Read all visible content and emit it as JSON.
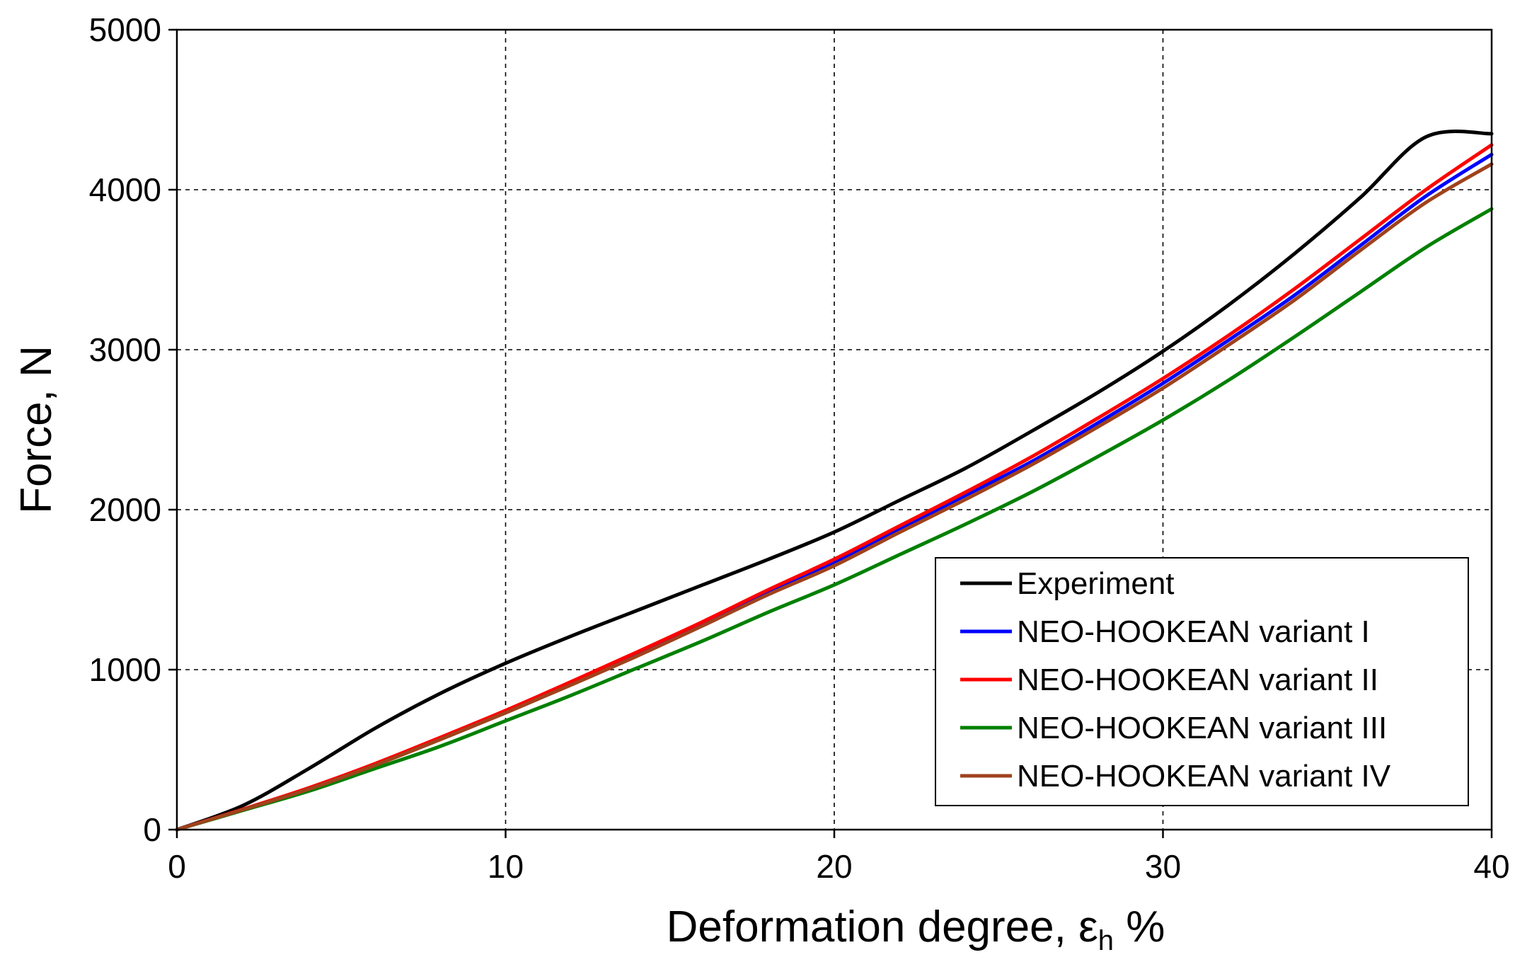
{
  "chart_data": {
    "type": "line",
    "title": "",
    "xlabel": "Deformation degree, ",
    "xlabel_symbol": "ε",
    "xlabel_subscript": "h",
    "xlabel_suffix": " %",
    "ylabel": "Force, N",
    "xlim": [
      0,
      40
    ],
    "ylim": [
      0,
      5000
    ],
    "x_ticks": [
      0,
      10,
      20,
      30,
      40
    ],
    "y_ticks": [
      0,
      1000,
      2000,
      3000,
      4000,
      5000
    ],
    "x_tick_labels": [
      "0",
      "10",
      "20",
      "30",
      "40"
    ],
    "y_tick_labels": [
      "0",
      "1000",
      "2000",
      "3000",
      "4000",
      "5000"
    ],
    "grid": true,
    "legend_position": "lower-right",
    "x": [
      0,
      2,
      4,
      6,
      8,
      10,
      12,
      14,
      16,
      18,
      20,
      22,
      24,
      26,
      28,
      30,
      32,
      34,
      36,
      38,
      40
    ],
    "series": [
      {
        "name": "Experiment",
        "color": "#000000",
        "values": [
          0,
          150,
          380,
          630,
          850,
          1040,
          1210,
          1370,
          1530,
          1690,
          1860,
          2060,
          2260,
          2490,
          2730,
          2990,
          3280,
          3600,
          3950,
          4330,
          4350
        ]
      },
      {
        "name": "NEO-HOOKEAN variant I",
        "color": "#0000ff",
        "values": [
          0,
          125,
          255,
          405,
          570,
          740,
          920,
          1100,
          1290,
          1490,
          1670,
          1880,
          2090,
          2300,
          2540,
          2790,
          3060,
          3340,
          3650,
          3960,
          4220
        ]
      },
      {
        "name": "NEO-HOOKEAN variant II",
        "color": "#ff0000",
        "values": [
          0,
          127,
          260,
          410,
          575,
          745,
          925,
          1110,
          1300,
          1500,
          1690,
          1900,
          2110,
          2330,
          2570,
          2820,
          3090,
          3380,
          3690,
          4000,
          4280
        ]
      },
      {
        "name": "NEO-HOOKEAN variant III",
        "color": "#008000",
        "values": [
          0,
          120,
          240,
          380,
          520,
          680,
          840,
          1010,
          1180,
          1360,
          1530,
          1720,
          1910,
          2110,
          2330,
          2560,
          2810,
          3080,
          3360,
          3640,
          3880
        ]
      },
      {
        "name": "NEO-HOOKEAN variant IV",
        "color": "#a0421c",
        "values": [
          0,
          124,
          252,
          400,
          562,
          730,
          905,
          1085,
          1275,
          1470,
          1650,
          1860,
          2065,
          2280,
          2515,
          2760,
          3030,
          3310,
          3620,
          3920,
          4160
        ]
      }
    ]
  }
}
